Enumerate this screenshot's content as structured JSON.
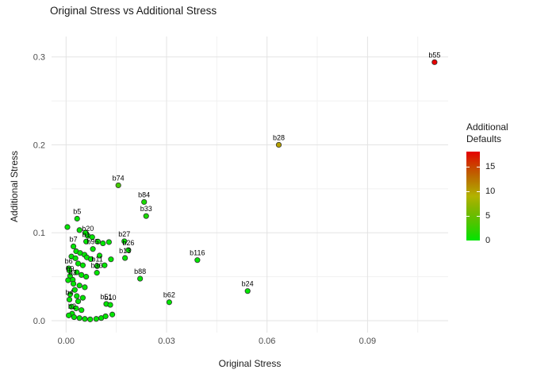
{
  "title": "Original Stress vs Additional Stress",
  "chart_data": {
    "type": "scatter",
    "title": "Original Stress vs Additional Stress",
    "xlabel": "Original Stress",
    "ylabel": "Additional Stress",
    "xlim": [
      -0.0045,
      0.114
    ],
    "ylim": [
      -0.013,
      0.323
    ],
    "x_ticks": [
      0.0,
      0.03,
      0.06,
      0.09
    ],
    "x_tick_labels": [
      "0.00",
      "0.03",
      "0.06",
      "0.09"
    ],
    "x_minor_ticks": [
      0.015,
      0.045,
      0.075,
      0.105
    ],
    "y_ticks": [
      0.0,
      0.1,
      0.2,
      0.3
    ],
    "y_tick_labels": [
      "0.0",
      "0.1",
      "0.2",
      "0.3"
    ],
    "y_minor_ticks": [
      0.05,
      0.15,
      0.25
    ],
    "grid": "major+minor on white, no axis lines",
    "legend": {
      "title_lines": [
        "Additional",
        "Defaults"
      ],
      "ticks": [
        0,
        5,
        10,
        15
      ],
      "max": 18,
      "low_color": "#00e600",
      "high_color": "#e60000",
      "position": "right"
    },
    "point_style": {
      "outline": "#333333",
      "radius": 3.2
    },
    "points": [
      {
        "label": "b55",
        "x": 0.11,
        "y": 0.294,
        "defaults": 18
      },
      {
        "label": "b28",
        "x": 0.0635,
        "y": 0.2,
        "defaults": 10
      },
      {
        "label": "b74",
        "x": 0.0156,
        "y": 0.154,
        "defaults": 3
      },
      {
        "label": "b84",
        "x": 0.0233,
        "y": 0.135,
        "defaults": 1
      },
      {
        "label": "b33",
        "x": 0.0239,
        "y": 0.119,
        "defaults": 1
      },
      {
        "label": "b5",
        "x": 0.0033,
        "y": 0.116,
        "defaults": 0
      },
      {
        "label": "b20",
        "x": 0.0065,
        "y": 0.0965,
        "defaults": 0
      },
      {
        "label": "b1",
        "x": 0.006,
        "y": 0.09,
        "defaults": 0
      },
      {
        "label": "b27",
        "x": 0.0174,
        "y": 0.0903,
        "defaults": 0
      },
      {
        "label": "b26",
        "x": 0.0186,
        "y": 0.0803,
        "defaults": 0
      },
      {
        "label": "b13",
        "x": 0.0176,
        "y": 0.0713,
        "defaults": 0
      },
      {
        "label": "b7",
        "x": 0.0022,
        "y": 0.0845,
        "defaults": 0
      },
      {
        "label": "b95",
        "x": 0.008,
        "y": 0.0815,
        "defaults": 0
      },
      {
        "label": "b11",
        "x": 0.0093,
        "y": 0.062,
        "defaults": 0
      },
      {
        "label": "b36",
        "x": 0.0092,
        "y": 0.0545,
        "defaults": 0
      },
      {
        "label": "b6",
        "x": 0.0008,
        "y": 0.0595,
        "defaults": 0
      },
      {
        "label": "b9",
        "x": 0.0012,
        "y": 0.051,
        "defaults": 0
      },
      {
        "label": "b3",
        "x": 0.002,
        "y": 0.0465,
        "defaults": 0
      },
      {
        "label": "b88",
        "x": 0.0221,
        "y": 0.0478,
        "defaults": 0
      },
      {
        "label": "b116",
        "x": 0.0392,
        "y": 0.0689,
        "defaults": 0
      },
      {
        "label": "b24",
        "x": 0.0542,
        "y": 0.0337,
        "defaults": 0
      },
      {
        "label": "b62",
        "x": 0.0308,
        "y": 0.021,
        "defaults": 0
      },
      {
        "label": "b51",
        "x": 0.012,
        "y": 0.019,
        "defaults": 0
      },
      {
        "label": "b10",
        "x": 0.0132,
        "y": 0.018,
        "defaults": 0
      },
      {
        "label": "b4",
        "x": 0.001,
        "y": 0.024,
        "defaults": 0
      },
      {
        "label": "b2",
        "x": 0.0018,
        "y": 0.008,
        "defaults": 0
      },
      {
        "x": 0.0004,
        "y": 0.1065,
        "defaults": 0
      },
      {
        "x": 0.004,
        "y": 0.103,
        "defaults": 0
      },
      {
        "x": 0.0058,
        "y": 0.1,
        "defaults": 0
      },
      {
        "x": 0.0078,
        "y": 0.095,
        "defaults": 0
      },
      {
        "x": 0.0095,
        "y": 0.09,
        "defaults": 0
      },
      {
        "x": 0.011,
        "y": 0.088,
        "defaults": 0
      },
      {
        "x": 0.0128,
        "y": 0.0894,
        "defaults": 0
      },
      {
        "x": 0.003,
        "y": 0.079,
        "defaults": 0
      },
      {
        "x": 0.0042,
        "y": 0.077,
        "defaults": 0
      },
      {
        "x": 0.0055,
        "y": 0.075,
        "defaults": 0
      },
      {
        "x": 0.0016,
        "y": 0.073,
        "defaults": 0
      },
      {
        "x": 0.0028,
        "y": 0.071,
        "defaults": 0
      },
      {
        "x": 0.0062,
        "y": 0.072,
        "defaults": 0
      },
      {
        "x": 0.0074,
        "y": 0.07,
        "defaults": 0
      },
      {
        "x": 0.01,
        "y": 0.074,
        "defaults": 0
      },
      {
        "x": 0.0134,
        "y": 0.0698,
        "defaults": 0
      },
      {
        "x": 0.0036,
        "y": 0.065,
        "defaults": 0
      },
      {
        "x": 0.005,
        "y": 0.063,
        "defaults": 0
      },
      {
        "x": 0.0115,
        "y": 0.063,
        "defaults": 0
      },
      {
        "x": 0.001,
        "y": 0.057,
        "defaults": 0
      },
      {
        "x": 0.0032,
        "y": 0.055,
        "defaults": 0
      },
      {
        "x": 0.0046,
        "y": 0.052,
        "defaults": 0
      },
      {
        "x": 0.006,
        "y": 0.05,
        "defaults": 0
      },
      {
        "x": 0.0006,
        "y": 0.046,
        "defaults": 0
      },
      {
        "x": 0.0022,
        "y": 0.042,
        "defaults": 0
      },
      {
        "x": 0.004,
        "y": 0.04,
        "defaults": 0
      },
      {
        "x": 0.0056,
        "y": 0.038,
        "defaults": 0
      },
      {
        "x": 0.0026,
        "y": 0.035,
        "defaults": 0
      },
      {
        "x": 0.0012,
        "y": 0.03,
        "defaults": 0
      },
      {
        "x": 0.0032,
        "y": 0.028,
        "defaults": 0
      },
      {
        "x": 0.005,
        "y": 0.026,
        "defaults": 0
      },
      {
        "x": 0.0036,
        "y": 0.022,
        "defaults": 0
      },
      {
        "x": 0.0016,
        "y": 0.016,
        "defaults": 0
      },
      {
        "x": 0.003,
        "y": 0.014,
        "defaults": 0
      },
      {
        "x": 0.0046,
        "y": 0.012,
        "defaults": 0
      },
      {
        "x": 0.0008,
        "y": 0.006,
        "defaults": 0
      },
      {
        "x": 0.0024,
        "y": 0.004,
        "defaults": 0
      },
      {
        "x": 0.004,
        "y": 0.003,
        "defaults": 0
      },
      {
        "x": 0.0056,
        "y": 0.002,
        "defaults": 0
      },
      {
        "x": 0.0072,
        "y": 0.0015,
        "defaults": 0
      },
      {
        "x": 0.009,
        "y": 0.002,
        "defaults": 0
      },
      {
        "x": 0.0105,
        "y": 0.003,
        "defaults": 0
      },
      {
        "x": 0.0118,
        "y": 0.005,
        "defaults": 0
      },
      {
        "x": 0.0138,
        "y": 0.007,
        "defaults": 0
      }
    ]
  },
  "colors": {
    "background": "#ffffff",
    "grid_major": "#e3e3e3",
    "grid_minor": "#f1f1f1",
    "tick_label": "#4d4d4d",
    "text": "#1a1a1a"
  }
}
